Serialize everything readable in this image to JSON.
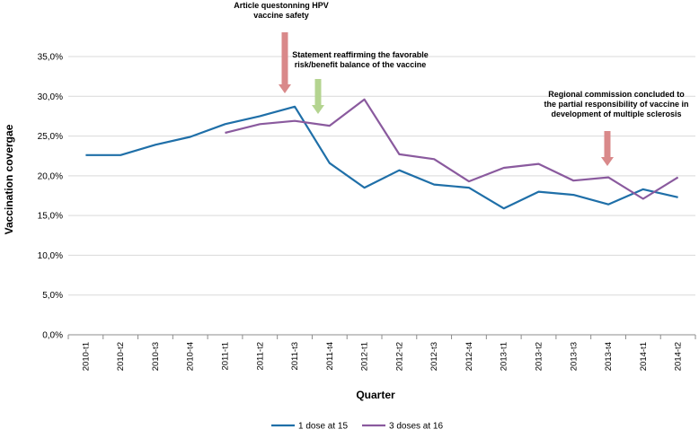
{
  "chart_data": {
    "type": "line",
    "title": "",
    "xlabel": "Quarter",
    "ylabel": "Vaccination covergae",
    "categories": [
      "2010-t1",
      "2010-t2",
      "2010-t3",
      "2010-t4",
      "2011-t1",
      "2011-t2",
      "2011-t3",
      "2011-t4",
      "2012-t1",
      "2012-t2",
      "2012-t3",
      "2012-t4",
      "2013-t1",
      "2013-t2",
      "2013-t3",
      "2013-t4",
      "2014-t1",
      "2014-t2"
    ],
    "y_ticks": [
      "0,0%",
      "5,0%",
      "10,0%",
      "15,0%",
      "20,0%",
      "25,0%",
      "30,0%",
      "35,0%"
    ],
    "ylim": [
      0,
      35
    ],
    "grid": "horizontal",
    "legend_position": "bottom",
    "series": [
      {
        "name": "1 dose at 15",
        "color": "#1f6fa8",
        "values": [
          22.6,
          22.6,
          23.9,
          24.9,
          26.5,
          27.5,
          28.7,
          21.6,
          18.5,
          20.7,
          18.9,
          18.5,
          15.9,
          18.0,
          17.6,
          16.4,
          18.3,
          17.3
        ]
      },
      {
        "name": "3 doses at 16",
        "color": "#8a5a9e",
        "values": [
          null,
          null,
          null,
          null,
          25.4,
          26.5,
          26.9,
          26.3,
          29.6,
          22.7,
          22.1,
          19.3,
          21.0,
          21.5,
          19.4,
          19.8,
          17.1,
          19.8
        ]
      }
    ],
    "annotations": [
      {
        "lines": [
          "Article questonning HPV",
          "vaccine safety"
        ],
        "arrow_color": "#d9898a",
        "category_index": 6.5
      },
      {
        "lines": [
          "Statement reaffirming  the favorable",
          "risk/benefit balance of the vaccine"
        ],
        "arrow_color": "#b4d490",
        "category_index": 7.2
      },
      {
        "lines": [
          "Regional commission  concluded  to",
          "the partial responsibility  of vaccine in",
          "development  of multiple sclerosis"
        ],
        "arrow_color": "#d9898a",
        "category_index": 15.0
      }
    ]
  }
}
